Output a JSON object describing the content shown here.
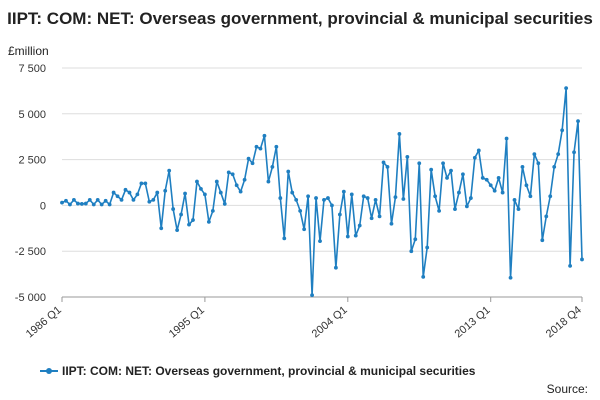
{
  "chart_data": {
    "type": "line",
    "title": "IIPT: COM: NET: Overseas government, provincial & municipal securities",
    "ylabel": "£million",
    "ylim": [
      -5000,
      7500
    ],
    "yticks": [
      7500,
      5000,
      2500,
      0,
      -2500,
      -5000
    ],
    "ytick_labels": [
      "7 500",
      "5 000",
      "2 500",
      "0",
      "-2 500",
      "-5 000"
    ],
    "x_tick_labels": [
      "1986 Q1",
      "1995 Q1",
      "2004 Q1",
      "2013 Q1",
      "2018 Q4"
    ],
    "x_tick_index": [
      0,
      36,
      72,
      108,
      131
    ],
    "grid": true,
    "legend": "bottom",
    "series": [
      {
        "name": "IIPT: COM: NET: Overseas government, provincial & municipal securities",
        "color": "#1f7fc1",
        "values": [
          150,
          250,
          50,
          300,
          100,
          80,
          100,
          300,
          50,
          300,
          50,
          250,
          50,
          700,
          500,
          300,
          850,
          700,
          300,
          600,
          1200,
          1200,
          200,
          300,
          700,
          -1250,
          800,
          1900,
          -200,
          -1350,
          -500,
          650,
          -1050,
          -800,
          1300,
          900,
          600,
          -900,
          -300,
          1300,
          700,
          80,
          1800,
          1700,
          1100,
          750,
          1400,
          2550,
          2300,
          3200,
          3100,
          3800,
          1300,
          2100,
          3200,
          400,
          -1800,
          1850,
          700,
          300,
          -300,
          -1300,
          500,
          -4900,
          400,
          -1950,
          300,
          400,
          0,
          -3400,
          -500,
          750,
          -1700,
          600,
          -1650,
          -1100,
          500,
          400,
          -700,
          300,
          -600,
          2350,
          2100,
          -1000,
          450,
          3900,
          350,
          2650,
          -2500,
          -1850,
          2300,
          -3900,
          -2300,
          1950,
          500,
          -300,
          2300,
          1500,
          1900,
          -200,
          700,
          1700,
          -50,
          400,
          2600,
          3000,
          1500,
          1400,
          1100,
          800,
          1500,
          700,
          3650,
          -3950,
          300,
          -200,
          2100,
          1100,
          500,
          2800,
          2300,
          -1900,
          -600,
          500,
          2100,
          2800,
          4100,
          6400,
          -3300,
          2900,
          4600,
          -2950
        ]
      }
    ]
  },
  "source_label": "Source:"
}
